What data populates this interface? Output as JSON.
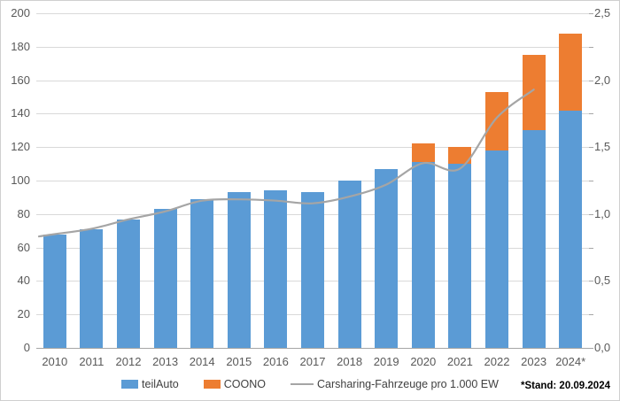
{
  "chart_data": {
    "type": "bar",
    "combo": "stacked-bars-with-line-on-secondary-axis",
    "title": "",
    "categories": [
      "2010",
      "2011",
      "2012",
      "2013",
      "2014",
      "2015",
      "2016",
      "2017",
      "2018",
      "2019",
      "2020",
      "2021",
      "2022",
      "2023",
      "2024*"
    ],
    "series": [
      {
        "name": "teilAuto",
        "kind": "bar",
        "stack": 0,
        "color": "#5B9BD5",
        "values": [
          68,
          71,
          77,
          83,
          89,
          93,
          94,
          93,
          100,
          107,
          111,
          110,
          118,
          130,
          142
        ]
      },
      {
        "name": "COONO",
        "kind": "bar",
        "stack": 1,
        "color": "#ED7D31",
        "values": [
          0,
          0,
          0,
          0,
          0,
          0,
          0,
          0,
          0,
          0,
          11,
          10,
          35,
          45,
          46
        ]
      },
      {
        "name": "Carsharing-Fahrzeuge pro 1.000 EW",
        "kind": "line",
        "axis": "right",
        "color": "#A5A5A5",
        "values": [
          0.85,
          0.89,
          0.96,
          1.02,
          1.1,
          1.11,
          1.1,
          1.08,
          1.13,
          1.22,
          1.38,
          1.34,
          1.72,
          1.93,
          null
        ]
      }
    ],
    "left_axis": {
      "min": 0,
      "max": 200,
      "step": 20,
      "tick_labels": [
        "0",
        "20",
        "40",
        "60",
        "80",
        "100",
        "120",
        "140",
        "160",
        "180",
        "200"
      ]
    },
    "right_axis": {
      "min": 0,
      "max": 2.5,
      "step": 0.5,
      "tick_labels": [
        "0,0",
        "0,5",
        "1,0",
        "1,5",
        "2,0",
        "2,5"
      ]
    },
    "grid": true,
    "legend_position": "bottom"
  },
  "footnote": "*Stand: 20.09.2024",
  "colors": {
    "teilauto_bar": "#5B9BD5",
    "coono_bar": "#ED7D31",
    "trend_line": "#A5A5A5",
    "gridline": "#d9d9d9",
    "axis_line": "#a6a6a6",
    "axis_text": "#595959",
    "legend_text": "#404040"
  }
}
